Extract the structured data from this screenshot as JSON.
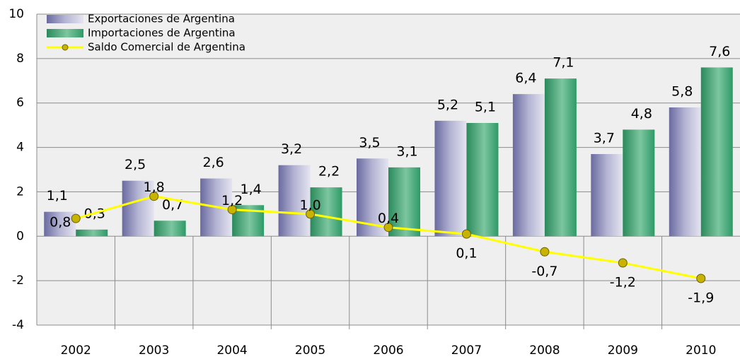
{
  "chart_data": {
    "type": "bar",
    "categories": [
      "2002",
      "2003",
      "2004",
      "2005",
      "2006",
      "2007",
      "2008",
      "2009",
      "2010"
    ],
    "series": [
      {
        "name": "Exportaciones de Argentina",
        "color": "#8484b4",
        "values": [
          1.1,
          2.5,
          2.6,
          3.2,
          3.5,
          5.2,
          6.4,
          3.7,
          5.8
        ],
        "value_labels": [
          "1,1",
          "2,5",
          "2,6",
          "3,2",
          "3,5",
          "5,2",
          "6,4",
          "3,7",
          "5,8"
        ]
      },
      {
        "name": "Importaciones de Argentina",
        "color": "#2e9a66",
        "values": [
          0.3,
          0.7,
          1.4,
          2.2,
          3.1,
          5.1,
          7.1,
          4.8,
          7.6
        ],
        "value_labels": [
          "0,3",
          "0,7",
          "1,4",
          "2,2",
          "3,1",
          "5,1",
          "7,1",
          "4,8",
          "7,6"
        ]
      },
      {
        "name": "Saldo Comercial de Argentina",
        "type": "line",
        "color": "#ffff00",
        "values": [
          0.8,
          1.8,
          1.2,
          1.0,
          0.4,
          0.1,
          -0.7,
          -1.2,
          -1.9
        ],
        "value_labels": [
          "0,8",
          "1,8",
          "1,2",
          "1,0",
          "0,4",
          "0,1",
          "-0,7",
          "-1,2",
          "-1,9"
        ]
      }
    ],
    "ylim": [
      -4,
      10
    ],
    "yticks": [
      -4,
      -2,
      0,
      2,
      4,
      6,
      8,
      10
    ],
    "grid": true,
    "legend": "top-left"
  }
}
